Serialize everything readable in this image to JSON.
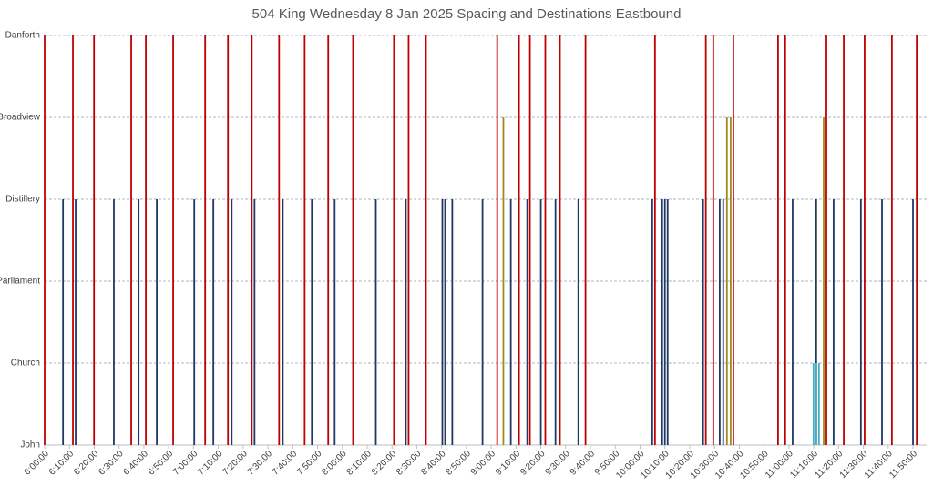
{
  "chart_data": {
    "type": "spike",
    "title": "504 King Wednesday 8 Jan 2025 Spacing and Destinations Eastbound",
    "xlim": [
      "6:00:00",
      "11:55:30"
    ],
    "xticks": [
      "6:00:00",
      "6:10:00",
      "6:20:00",
      "6:30:00",
      "6:40:00",
      "6:50:00",
      "7:00:00",
      "7:10:00",
      "7:20:00",
      "7:30:00",
      "7:40:00",
      "7:50:00",
      "8:00:00",
      "8:10:00",
      "8:20:00",
      "8:30:00",
      "8:40:00",
      "8:50:00",
      "9:00:00",
      "9:10:00",
      "9:20:00",
      "9:30:00",
      "9:40:00",
      "9:50:00",
      "10:00:00",
      "10:10:00",
      "10:20:00",
      "10:30:00",
      "10:40:00",
      "10:50:00",
      "11:00:00",
      "11:10:00",
      "11:20:00",
      "11:30:00",
      "11:40:00",
      "11:50:00"
    ],
    "ylim": [
      0,
      5
    ],
    "yticks": [
      {
        "value": 0,
        "label": "John"
      },
      {
        "value": 1,
        "label": "Church"
      },
      {
        "value": 2,
        "label": "Parliament"
      },
      {
        "value": 3,
        "label": "Distillery"
      },
      {
        "value": 4,
        "label": "Broadview"
      },
      {
        "value": 5,
        "label": "Danforth"
      }
    ],
    "grid": true,
    "series": [
      {
        "color": "#c00000",
        "x": [
          "6:00:00",
          "6:11:24",
          "6:19:54",
          "6:34:54",
          "6:40:48",
          "6:51:48",
          "7:04:42",
          "7:13:54",
          "7:23:30",
          "7:34:30",
          "7:44:48",
          "7:54:18",
          "8:04:18",
          "8:20:48",
          "8:26:42",
          "8:33:42",
          "9:02:24",
          "9:11:12",
          "9:15:36",
          "9:21:48",
          "9:27:42",
          "9:38:00",
          "10:06:00",
          "10:26:30",
          "10:29:30",
          "10:37:36",
          "10:55:36",
          "10:58:30",
          "11:15:06",
          "11:22:06",
          "11:30:30",
          "11:41:30",
          "11:51:30"
        ],
        "values": [
          5,
          5,
          5,
          5,
          5,
          5,
          5,
          5,
          5,
          5,
          5,
          5,
          5,
          5,
          5,
          5,
          5,
          5,
          5,
          5,
          5,
          5,
          5,
          5,
          5,
          5,
          5,
          5,
          5,
          5,
          5,
          5,
          5
        ]
      },
      {
        "color": "#1f3864",
        "x": [
          "6:07:24",
          "6:12:30",
          "6:27:54",
          "6:37:54",
          "6:45:12",
          "7:00:18",
          "7:08:00",
          "7:15:24",
          "7:24:36",
          "7:36:00",
          "7:47:42",
          "7:56:54",
          "8:13:30",
          "8:25:36",
          "8:40:18",
          "8:41:24",
          "8:44:18",
          "8:56:30",
          "9:07:54",
          "9:14:30",
          "9:20:00",
          "9:25:54",
          "9:35:06",
          "10:04:54",
          "10:08:54",
          "10:10:00",
          "10:11:06",
          "10:25:24",
          "10:32:06",
          "10:33:30",
          "11:01:30",
          "11:11:00",
          "11:18:00",
          "11:29:00",
          "11:37:30",
          "11:50:00"
        ],
        "values": [
          3,
          3,
          3,
          3,
          3,
          3,
          3,
          3,
          3,
          3,
          3,
          3,
          3,
          3,
          3,
          3,
          3,
          3,
          3,
          3,
          3,
          3,
          3,
          3,
          3,
          3,
          3,
          3,
          3,
          3,
          3,
          3,
          3,
          3,
          3,
          3
        ]
      },
      {
        "color": "#9c8a1e",
        "x": [
          "9:04:54",
          "10:35:00",
          "10:36:30",
          "11:14:00"
        ],
        "values": [
          4,
          4,
          4,
          4
        ]
      },
      {
        "color": "#4bacc6",
        "x": [
          "11:09:54",
          "11:11:00",
          "11:12:06"
        ],
        "values": [
          1,
          1,
          1
        ]
      }
    ]
  }
}
